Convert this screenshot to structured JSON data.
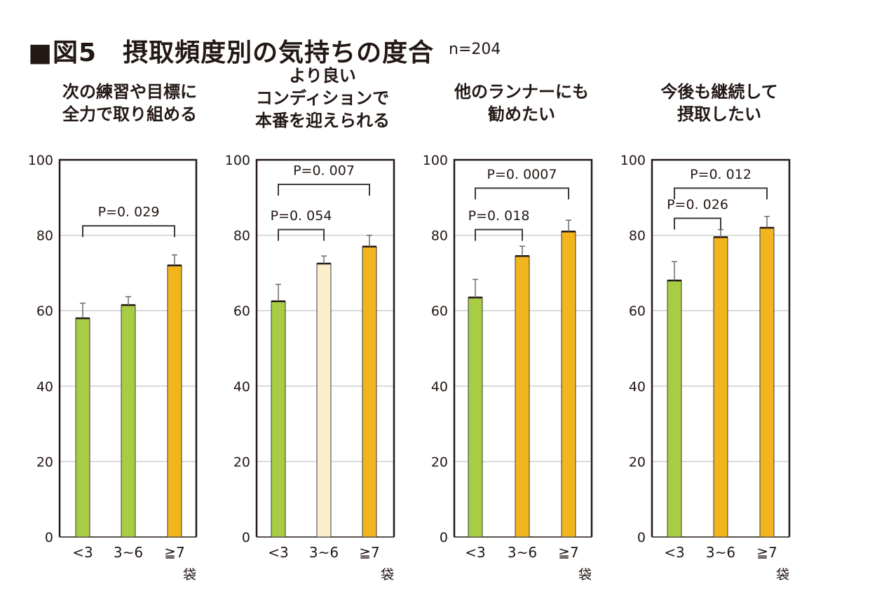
{
  "figure": {
    "title": "■図5　摂取頻度別の気持ちの度合",
    "n_label": "n=204"
  },
  "colors": {
    "green": "#A8CD45",
    "light": "#FBEECB",
    "orange": "#F2B51E",
    "grid": "#cfcfcf",
    "frame": "#231815"
  },
  "chart_data": [
    {
      "type": "bar",
      "title_lines": [
        "次の練習や目標に",
        "全力で取り組める"
      ],
      "categories": [
        "<3",
        "3~6",
        "≧7"
      ],
      "values": [
        58,
        61.5,
        72
      ],
      "errors": [
        4,
        2.2,
        2.8
      ],
      "bar_colors": [
        "green",
        "green",
        "orange"
      ],
      "ylim": [
        0,
        100
      ],
      "yticks": [
        0,
        20,
        40,
        60,
        80,
        100
      ],
      "unit_label": "袋",
      "grid": true,
      "comparisons": [
        {
          "from": 0,
          "to": 2,
          "label": "P=0. 029",
          "level": 82.5,
          "label_level": 85
        }
      ]
    },
    {
      "type": "bar",
      "title_lines": [
        "より良い",
        "コンディションで",
        "本番を迎えられる"
      ],
      "categories": [
        "<3",
        "3~6",
        "≧7"
      ],
      "values": [
        62.5,
        72.5,
        77
      ],
      "errors": [
        4.5,
        2,
        3
      ],
      "bar_colors": [
        "green",
        "light",
        "orange"
      ],
      "ylim": [
        0,
        100
      ],
      "yticks": [
        0,
        20,
        40,
        60,
        80,
        100
      ],
      "unit_label": "袋",
      "grid": true,
      "comparisons": [
        {
          "from": 0,
          "to": 1,
          "label": "P=0. 054",
          "level": 81.5,
          "label_level": 84
        },
        {
          "from": 0,
          "to": 2,
          "label": "P=0. 007",
          "level": 93.5,
          "label_level": 96
        }
      ]
    },
    {
      "type": "bar",
      "title_lines": [
        "他のランナーにも",
        "勧めたい"
      ],
      "categories": [
        "<3",
        "3~6",
        "≧7"
      ],
      "values": [
        63.5,
        74.5,
        81
      ],
      "errors": [
        4.8,
        2.6,
        3
      ],
      "bar_colors": [
        "green",
        "orange",
        "orange"
      ],
      "ylim": [
        0,
        100
      ],
      "yticks": [
        0,
        20,
        40,
        60,
        80,
        100
      ],
      "unit_label": "袋",
      "grid": true,
      "comparisons": [
        {
          "from": 0,
          "to": 1,
          "label": "P=0. 018",
          "level": 81.5,
          "label_level": 84
        },
        {
          "from": 0,
          "to": 2,
          "label": "P=0. 0007",
          "level": 92.5,
          "label_level": 95
        }
      ]
    },
    {
      "type": "bar",
      "title_lines": [
        "今後も継続して",
        "摂取したい"
      ],
      "categories": [
        "<3",
        "3~6",
        "≧7"
      ],
      "values": [
        68,
        79.5,
        82
      ],
      "errors": [
        5,
        2,
        3
      ],
      "bar_colors": [
        "green",
        "orange",
        "orange"
      ],
      "ylim": [
        0,
        100
      ],
      "yticks": [
        0,
        20,
        40,
        60,
        80,
        100
      ],
      "unit_label": "袋",
      "grid": true,
      "comparisons": [
        {
          "from": 0,
          "to": 1,
          "label": "P=0. 026",
          "level": 84.5,
          "label_level": 87
        },
        {
          "from": 0,
          "to": 2,
          "label": "P=0. 012",
          "level": 92.5,
          "label_level": 95
        }
      ]
    }
  ]
}
